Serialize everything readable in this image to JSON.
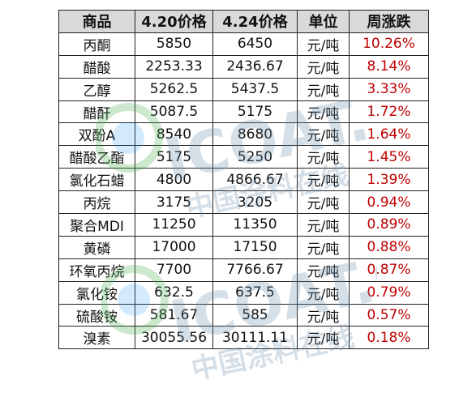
{
  "table": {
    "headers": [
      "商品",
      "4.20价格",
      "4.24价格",
      "单位",
      "周涨跌"
    ],
    "rows": [
      [
        "丙酮",
        "5850",
        "6450",
        "元/吨",
        "10.26%"
      ],
      [
        "醋酸",
        "2253.33",
        "2436.67",
        "元/吨",
        "8.14%"
      ],
      [
        "乙醇",
        "5262.5",
        "5437.5",
        "元/吨",
        "3.33%"
      ],
      [
        "醋酐",
        "5087.5",
        "5175",
        "元/吨",
        "1.72%"
      ],
      [
        "双酚A",
        "8540",
        "8680",
        "元/吨",
        "1.64%"
      ],
      [
        "醋酸乙酯",
        "5175",
        "5250",
        "元/吨",
        "1.45%"
      ],
      [
        "氯化石蜡",
        "4800",
        "4866.67",
        "元/吨",
        "1.39%"
      ],
      [
        "丙烷",
        "3175",
        "3205",
        "元/吨",
        "0.94%"
      ],
      [
        "聚合MDI",
        "11250",
        "11350",
        "元/吨",
        "0.89%"
      ],
      [
        "黄磷",
        "17000",
        "17150",
        "元/吨",
        "0.88%"
      ],
      [
        "环氧丙烷",
        "7700",
        "7766.67",
        "元/吨",
        "0.87%"
      ],
      [
        "氯化铵",
        "632.5",
        "637.5",
        "元/吨",
        "0.79%"
      ],
      [
        "硫酸铵",
        "581.67",
        "585",
        "元/吨",
        "0.57%"
      ],
      [
        "溴素",
        "30055.56",
        "30111.11",
        "元/吨",
        "0.18%"
      ]
    ]
  },
  "watermark": {
    "logo": "ICOAT.CC",
    "tagline": "中国涂料在线"
  },
  "colors": {
    "header_bg": "#d9d9d9",
    "change_text": "#c00000",
    "border": "#222222"
  }
}
